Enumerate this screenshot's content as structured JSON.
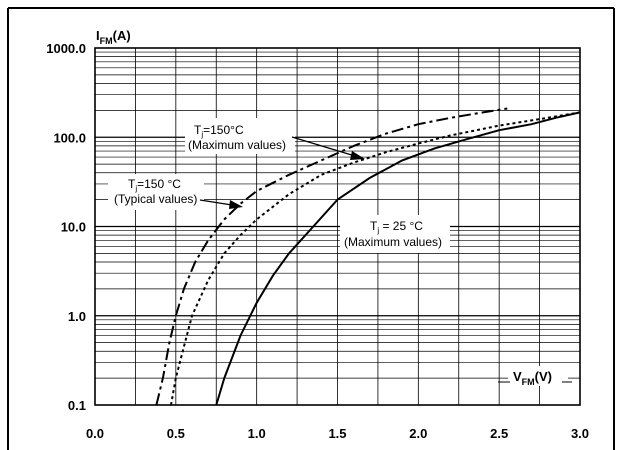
{
  "chart_data": {
    "type": "line",
    "y_scale": "log",
    "x_scale": "linear",
    "xlim": [
      0.0,
      3.0
    ],
    "ylim": [
      0.1,
      1000.0
    ],
    "grid": true,
    "y_axis": {
      "label_main": "I",
      "label_sub": "FM",
      "label_unit": "(A)",
      "ticks": [
        {
          "value": 0.1,
          "label": "0.1"
        },
        {
          "value": 1.0,
          "label": "1.0"
        },
        {
          "value": 10.0,
          "label": "10.0"
        },
        {
          "value": 100.0,
          "label": "100.0"
        },
        {
          "value": 1000.0,
          "label": "1000.0"
        }
      ]
    },
    "x_axis": {
      "label_main": "V",
      "label_sub": "FM",
      "label_unit": "(V)",
      "ticks": [
        {
          "value": 0.0,
          "label": "0.0"
        },
        {
          "value": 0.5,
          "label": "0.5"
        },
        {
          "value": 1.0,
          "label": "1.0"
        },
        {
          "value": 1.5,
          "label": "1.5"
        },
        {
          "value": 2.0,
          "label": "2.0"
        },
        {
          "value": 2.5,
          "label": "2.5"
        },
        {
          "value": 3.0,
          "label": "3.0"
        }
      ]
    },
    "series": [
      {
        "style": "dash-dot",
        "points": [
          [
            0.38,
            0.1
          ],
          [
            0.42,
            0.2
          ],
          [
            0.46,
            0.5
          ],
          [
            0.5,
            1.0
          ],
          [
            0.55,
            2.0
          ],
          [
            0.62,
            4.0
          ],
          [
            0.7,
            7.0
          ],
          [
            0.8,
            12.0
          ],
          [
            0.9,
            18.0
          ],
          [
            1.0,
            25.0
          ],
          [
            1.2,
            38.0
          ],
          [
            1.4,
            55.0
          ],
          [
            1.6,
            80.0
          ],
          [
            1.8,
            110.0
          ],
          [
            2.0,
            140.0
          ],
          [
            2.2,
            165.0
          ],
          [
            2.4,
            190.0
          ],
          [
            2.55,
            210.0
          ]
        ]
      },
      {
        "style": "dotted",
        "points": [
          [
            0.47,
            0.1
          ],
          [
            0.5,
            0.2
          ],
          [
            0.55,
            0.45
          ],
          [
            0.6,
            1.0
          ],
          [
            0.7,
            2.5
          ],
          [
            0.8,
            5.0
          ],
          [
            0.9,
            8.0
          ],
          [
            1.0,
            12.0
          ],
          [
            1.2,
            23.0
          ],
          [
            1.4,
            38.0
          ],
          [
            1.6,
            52.0
          ],
          [
            1.8,
            68.0
          ],
          [
            2.0,
            85.0
          ],
          [
            2.2,
            105.0
          ],
          [
            2.5,
            135.0
          ],
          [
            2.8,
            165.0
          ],
          [
            3.0,
            190.0
          ]
        ]
      },
      {
        "style": "solid",
        "points": [
          [
            0.75,
            0.1
          ],
          [
            0.8,
            0.2
          ],
          [
            0.9,
            0.6
          ],
          [
            1.0,
            1.4
          ],
          [
            1.1,
            2.8
          ],
          [
            1.2,
            5.0
          ],
          [
            1.35,
            10.0
          ],
          [
            1.5,
            20.0
          ],
          [
            1.7,
            35.0
          ],
          [
            1.9,
            55.0
          ],
          [
            2.1,
            75.0
          ],
          [
            2.3,
            95.0
          ],
          [
            2.5,
            120.0
          ],
          [
            2.7,
            140.0
          ],
          [
            2.85,
            165.0
          ],
          [
            3.0,
            190.0
          ]
        ]
      }
    ],
    "annotations": [
      {
        "main": "T",
        "sub": "j",
        "rest": "=150°C",
        "line2": "(Maximum values)",
        "arrow_to": [
          1.65,
          55.0
        ]
      },
      {
        "main": "T",
        "sub": "j",
        "rest": "=150 °C",
        "line2": "(Typical values)",
        "arrow_to": [
          0.9,
          18.0
        ]
      },
      {
        "main": "T",
        "sub": "j",
        "rest": " = 25 °C",
        "line2": "(Maximum values)",
        "arrow_to": [
          2.3,
          95.0
        ]
      }
    ]
  }
}
